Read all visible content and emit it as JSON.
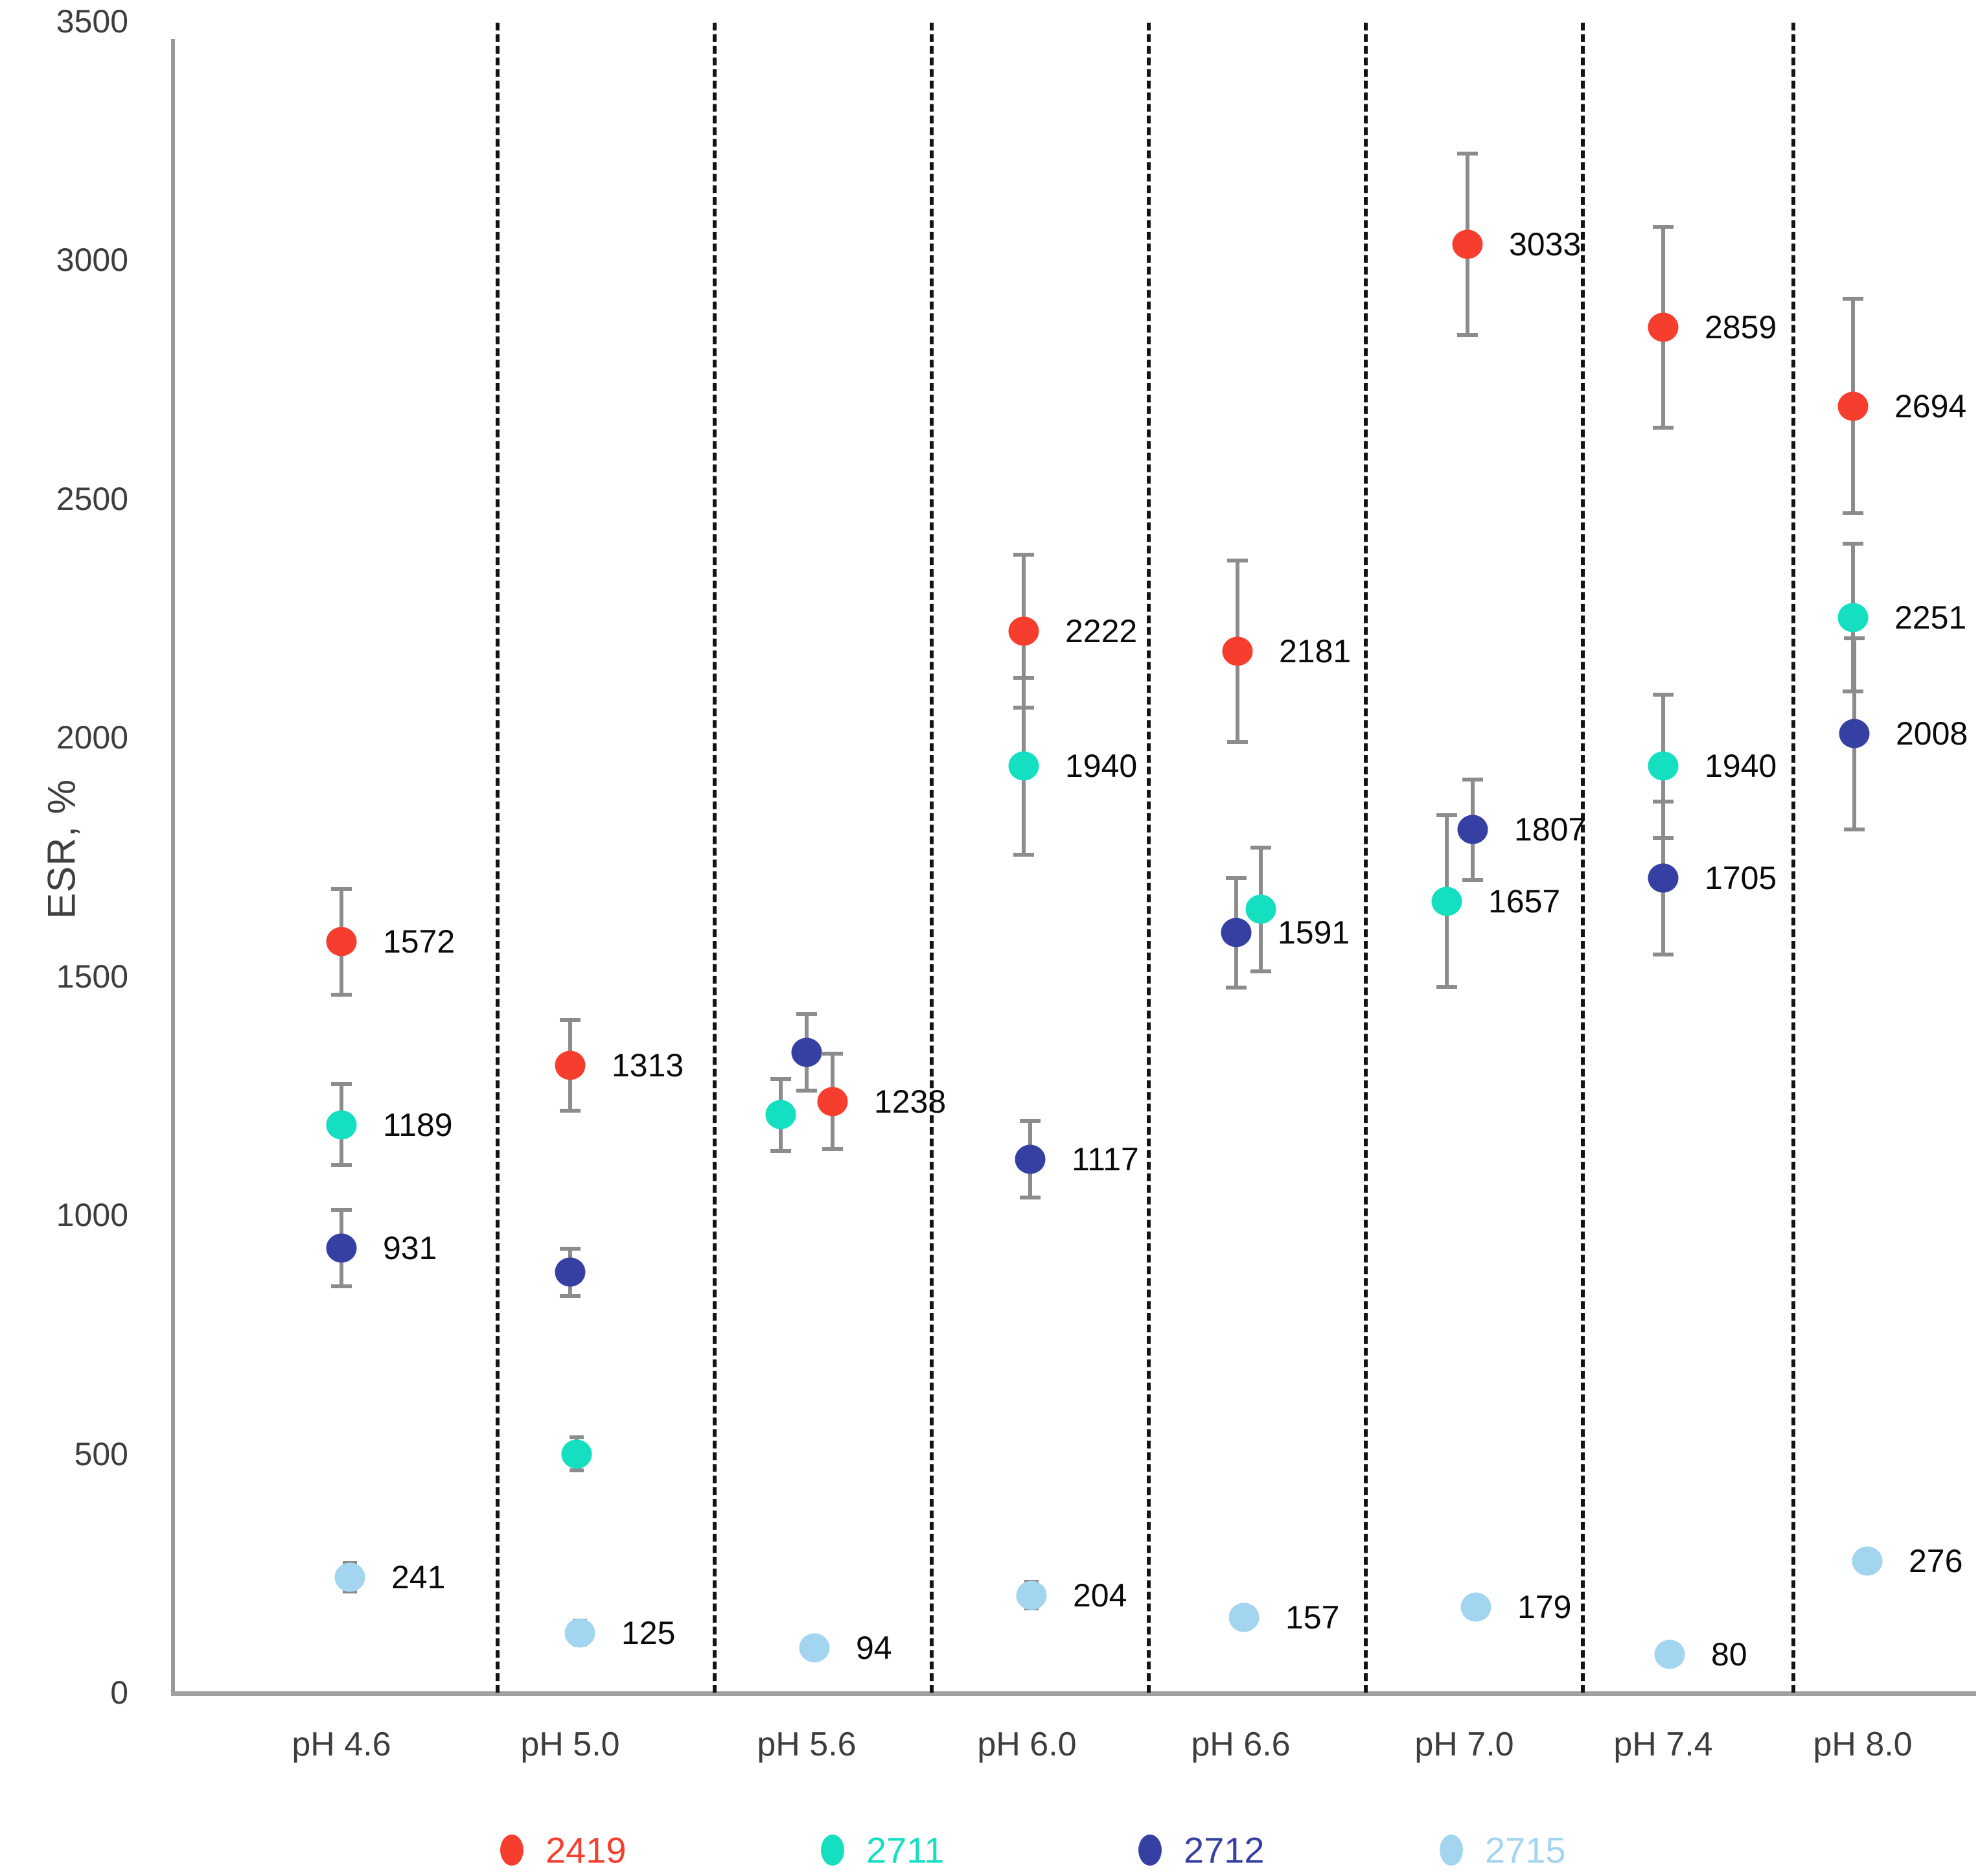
{
  "chart_data": {
    "type": "scatter",
    "title": "",
    "xlabel": "",
    "ylabel": "ESR, %",
    "ylim": [
      0,
      3500
    ],
    "yticks": [
      0,
      500,
      1000,
      1500,
      2000,
      2500,
      3000,
      3500
    ],
    "grid": "dashed vertical separators between categories",
    "legend_position": "bottom",
    "categories": [
      "pH 4.6",
      "pH 5.0",
      "pH 5.6",
      "pH 6.0",
      "pH 6.6",
      "pH 7.0",
      "pH 7.4",
      "pH 8.0"
    ],
    "series": [
      {
        "name": "2419",
        "color": "#f63e2e",
        "points": [
          {
            "category": "pH 4.6",
            "value": 1572,
            "error": 110,
            "label": "1572",
            "dx": 0
          },
          {
            "category": "pH 5.0",
            "value": 1313,
            "error": 95,
            "label": "1313",
            "dx": 0
          },
          {
            "category": "pH 5.6",
            "value": 1238,
            "error": 100,
            "label": "1238",
            "dx": 40
          },
          {
            "category": "pH 6.0",
            "value": 2222,
            "error": 160,
            "label": "2222",
            "dx": -5
          },
          {
            "category": "pH 6.6",
            "value": 2181,
            "error": 190,
            "label": "2181",
            "dx": -5
          },
          {
            "category": "pH 7.0",
            "value": 3033,
            "error": 190,
            "label": "3033",
            "dx": 5
          },
          {
            "category": "pH 7.4",
            "value": 2859,
            "error": 210,
            "label": "2859",
            "dx": 0
          },
          {
            "category": "pH 8.0",
            "value": 2694,
            "error": 225,
            "label": "2694",
            "dx": -15
          }
        ]
      },
      {
        "name": "2711",
        "color": "#14dfc0",
        "points": [
          {
            "category": "pH 4.6",
            "value": 1189,
            "error": 85,
            "label": "1189",
            "dx": 0
          },
          {
            "category": "pH 5.0",
            "value": 500,
            "error": 35,
            "label": null,
            "dx": 10
          },
          {
            "category": "pH 5.6",
            "value": 1210,
            "error": 75,
            "label": null,
            "dx": -40
          },
          {
            "category": "pH 6.0",
            "value": 1940,
            "error": 185,
            "label": "1940",
            "dx": -5
          },
          {
            "category": "pH 6.6",
            "value": 1640,
            "error": 130,
            "label": null,
            "dx": 31
          },
          {
            "category": "pH 7.0",
            "value": 1657,
            "error": 180,
            "label": "1657",
            "dx": -27
          },
          {
            "category": "pH 7.4",
            "value": 1940,
            "error": 150,
            "label": "1940",
            "dx": 0
          },
          {
            "category": "pH 8.0",
            "value": 2251,
            "error": 155,
            "label": "2251",
            "dx": -15
          }
        ]
      },
      {
        "name": "2712",
        "color": "#3640a2",
        "points": [
          {
            "category": "pH 4.6",
            "value": 931,
            "error": 80,
            "label": "931",
            "dx": 0
          },
          {
            "category": "pH 5.0",
            "value": 880,
            "error": 50,
            "label": null,
            "dx": 0
          },
          {
            "category": "pH 5.6",
            "value": 1340,
            "error": 80,
            "label": null,
            "dx": 0
          },
          {
            "category": "pH 6.0",
            "value": 1117,
            "error": 80,
            "label": "1117",
            "dx": 5
          },
          {
            "category": "pH 6.6",
            "value": 1591,
            "error": 115,
            "label": "1591",
            "dx": -7
          },
          {
            "category": "pH 7.0",
            "value": 1807,
            "error": 105,
            "label": "1807",
            "dx": 13
          },
          {
            "category": "pH 7.4",
            "value": 1705,
            "error": 160,
            "label": "1705",
            "dx": 0
          },
          {
            "category": "pH 8.0",
            "value": 2008,
            "error": 200,
            "label": "2008",
            "dx": -13
          }
        ]
      },
      {
        "name": "2715",
        "color": "#a3d5f0",
        "points": [
          {
            "category": "pH 4.6",
            "value": 241,
            "error": 30,
            "label": "241",
            "dx": 13
          },
          {
            "category": "pH 5.0",
            "value": 125,
            "error": 25,
            "label": "125",
            "dx": 15
          },
          {
            "category": "pH 5.6",
            "value": 94,
            "error": 22,
            "label": "94",
            "dx": 12
          },
          {
            "category": "pH 6.0",
            "value": 204,
            "error": 28,
            "label": "204",
            "dx": 7
          },
          {
            "category": "pH 6.6",
            "value": 157,
            "error": 22,
            "label": "157",
            "dx": 5
          },
          {
            "category": "pH 7.0",
            "value": 179,
            "error": 20,
            "label": "179",
            "dx": 18
          },
          {
            "category": "pH 7.4",
            "value": 80,
            "error": 12,
            "label": "80",
            "dx": 10
          },
          {
            "category": "pH 8.0",
            "value": 276,
            "error": 10,
            "label": "276",
            "dx": 7
          }
        ]
      }
    ]
  }
}
